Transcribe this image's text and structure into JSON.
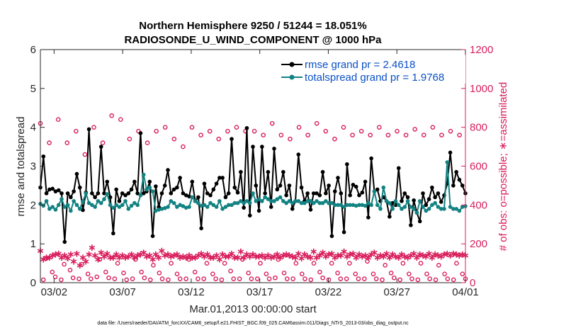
{
  "chart_data": {
    "type": "line",
    "title": "Northern Hemisphere 9250 / 51244 = 18.051%",
    "subtitle": "RADIOSONDE_U_WIND_COMPONENT @ 1000 hPa",
    "xlabel": "Mar.01,2013 00:00:00 start",
    "ylabel": "rmse and totalspread",
    "y2label": "# of obs: o=possible; ∗=assimilated",
    "xlim": [
      0,
      31
    ],
    "ylim": [
      0,
      6
    ],
    "y2lim": [
      0,
      1200
    ],
    "x_ticks": [
      1,
      6,
      11,
      16,
      21,
      26,
      31
    ],
    "x_tick_labels": [
      "03/02",
      "03/07",
      "03/12",
      "03/17",
      "03/22",
      "03/27",
      "04/01"
    ],
    "y_ticks": [
      "0",
      "1",
      "2",
      "3",
      "4",
      "5",
      "6"
    ],
    "y2_ticks": [
      "0",
      "200",
      "400",
      "600",
      "800",
      "1000",
      "1200"
    ],
    "colors": {
      "rmse": "#000000",
      "spread": "#138282",
      "obs": "#d81e5b",
      "legend_text": "#0a50c8",
      "axis": "#262626"
    },
    "series": [
      {
        "name": "rmse grand pr = 2.4618",
        "axis": "left",
        "values": [
          2.45,
          3.25,
          2.3,
          2.4,
          2.42,
          2.35,
          2.38,
          2.3,
          1.05,
          2.3,
          2.2,
          2.35,
          2.8,
          2.45,
          1.87,
          2.32,
          3.95,
          2.3,
          2.2,
          2.3,
          3.5,
          2.3,
          2.6,
          2.2,
          1.27,
          2.4,
          2.1,
          2.3,
          2.25,
          2.3,
          2.4,
          2.6,
          2.3,
          3.85,
          2.3,
          2.35,
          2.6,
          1.2,
          2.48,
          1.95,
          2.3,
          2.5,
          2.9,
          2.3,
          2.4,
          2.45,
          2.7,
          2.3,
          2.25,
          2.22,
          2.6,
          2.1,
          2.2,
          1.4,
          2.55,
          2.3,
          2.25,
          2.4,
          2.55,
          2.7,
          2.7,
          2.2,
          2.3,
          3.7,
          2.45,
          2.32,
          2.85,
          1.93,
          3.98,
          1.73,
          3.5,
          2.5,
          1.85,
          3.5,
          2.3,
          2.85,
          1.95,
          3.45,
          2.4,
          2.5,
          2.85,
          2.25,
          2.5,
          1.9,
          2.1,
          3.3,
          2.45,
          2.1,
          2.3,
          1.88,
          2.3,
          2.3,
          2.25,
          2.85,
          2.3,
          2.5,
          1.2,
          2.35,
          2.7,
          2.3,
          1.3,
          3.05,
          2.25,
          2.52,
          2.47,
          2.25,
          2.32,
          2.6,
          1.68,
          3.2,
          2.35,
          2.4,
          2.1,
          2.2,
          2.1,
          1.7,
          2.05,
          2.0,
          2.95,
          2.1,
          2.3,
          2.2,
          1.48,
          2.12,
          1.8,
          1.58,
          2.3,
          2.0,
          2.15,
          2.45,
          2.2,
          2.3,
          2.08,
          2.25,
          2.55,
          3.35,
          2.5,
          2.85,
          2.65,
          2.5,
          2.3
        ]
      },
      {
        "name": "totalspread grand pr = 1.9768",
        "axis": "left",
        "values": [
          2.03,
          1.98,
          2.1,
          1.9,
          1.95,
          1.88,
          2.0,
          2.15,
          1.95,
          2.0,
          1.85,
          2.1,
          2.0,
          1.9,
          2.1,
          2.3,
          2.05,
          2.0,
          1.95,
          2.1,
          2.05,
          2.15,
          2.28,
          2.0,
          1.93,
          2.0,
          1.95,
          2.0,
          2.1,
          1.9,
          1.98,
          2.05,
          2.0,
          2.25,
          2.78,
          2.4,
          2.45,
          2.35,
          1.85,
          1.88,
          1.9,
          1.92,
          1.95,
          2.1,
          2.05,
          1.95,
          2.0,
          1.97,
          1.93,
          1.95,
          2.2,
          2.1,
          2.05,
          1.98,
          2.0,
          1.95,
          2.05,
          2.0,
          1.95,
          2.1,
          1.9,
          1.95,
          2.0,
          2.0,
          2.05,
          2.05,
          2.1,
          2.05,
          2.1,
          2.05,
          2.3,
          2.1,
          2.15,
          2.1,
          2.2,
          2.15,
          2.1,
          2.1,
          2.15,
          2.2,
          2.1,
          2.05,
          2.1,
          2.05,
          2.1,
          2.1,
          2.05,
          2.05,
          2.1,
          2.1,
          2.05,
          2.1,
          2.05,
          2.05,
          2.1,
          2.05,
          2.05,
          2.0,
          2.0,
          2.0,
          1.95,
          2.0,
          2.0,
          2.0,
          1.98,
          2.0,
          2.0,
          1.98,
          2.05,
          2.0,
          2.35,
          2.0,
          1.9,
          2.45,
          2.1,
          2.05,
          1.9,
          2.1,
          2.0,
          1.9,
          1.95,
          2.1,
          1.95,
          1.9,
          1.8,
          2.1,
          1.95,
          1.85,
          1.9,
          2.0,
          2.05,
          1.95,
          1.9,
          1.9,
          3.1,
          1.95,
          1.9,
          1.9,
          1.85,
          1.95,
          1.97
        ]
      },
      {
        "name": "possible",
        "axis": "right",
        "marker": "o",
        "values": [
          820,
          15,
          125,
          720,
          55,
          30,
          840,
          15,
          95,
          720,
          65,
          25,
          780,
          20,
          95,
          660,
          45,
          20,
          800,
          30,
          120,
          720,
          55,
          25,
          860,
          20,
          100,
          840,
          50,
          15,
          740,
          20,
          120,
          780,
          55,
          25,
          720,
          15,
          90,
          780,
          50,
          20,
          800,
          15,
          100,
          740,
          45,
          20,
          700,
          20,
          120,
          800,
          55,
          20,
          760,
          20,
          100,
          780,
          45,
          20,
          740,
          15,
          100,
          780,
          60,
          20,
          800,
          20,
          120,
          780,
          50,
          20,
          780,
          20,
          100,
          760,
          45,
          20,
          820,
          25,
          120,
          760,
          50,
          20,
          740,
          20,
          100,
          800,
          45,
          20,
          760,
          15,
          100,
          820,
          55,
          25,
          780,
          15,
          100,
          740,
          50,
          20,
          800,
          20,
          100,
          760,
          45,
          20,
          780,
          20,
          110,
          760,
          45,
          20,
          800,
          15,
          90,
          760,
          50,
          25,
          780,
          15,
          100,
          760,
          45,
          20,
          790,
          15,
          100,
          760,
          45,
          20,
          800,
          15,
          90,
          760,
          45,
          20,
          780,
          15,
          100,
          760,
          45,
          20
        ]
      },
      {
        "name": "assimilated",
        "axis": "right",
        "marker": "*",
        "values": [
          165,
          120,
          130,
          130,
          140,
          145,
          150,
          130,
          140,
          125,
          145,
          110,
          150,
          90,
          130,
          110,
          145,
          180,
          140,
          120,
          155,
          135,
          150,
          130,
          130,
          145,
          130,
          140,
          130,
          135,
          145,
          130,
          140,
          145,
          155,
          135,
          140,
          120,
          145,
          130,
          165,
          140,
          145,
          135,
          140,
          145,
          130,
          135,
          130,
          140,
          130,
          130,
          140,
          150,
          135,
          145,
          130,
          130,
          140,
          120,
          145,
          135,
          135,
          150,
          130,
          130,
          160,
          130,
          145,
          135,
          145,
          135,
          135,
          140,
          130,
          140,
          130,
          135,
          145,
          130,
          140,
          145,
          140,
          135,
          130,
          150,
          125,
          145,
          135,
          130,
          160,
          130,
          140,
          155,
          135,
          145,
          150,
          130,
          140,
          140,
          160,
          135,
          145,
          150,
          130,
          145,
          135,
          140,
          130,
          145,
          155,
          130,
          140,
          135,
          150,
          130,
          145,
          135,
          130,
          145,
          135,
          130,
          140,
          150,
          130,
          145,
          140,
          135,
          150,
          130,
          145,
          140,
          135,
          145,
          150,
          140,
          150,
          145,
          140,
          145,
          140
        ]
      }
    ],
    "legend": [
      "rmse grand pr = 2.4618",
      "totalspread grand pr = 1.9768"
    ],
    "legend_position": "top-right"
  },
  "footer": {
    "data_file": "data file: /Users/raeder/DAI/ATM_forcXX/CAM6_setup/f.e21.FHIST_BGC.f09_025.CAM6assim.011/Diags_NTrS_2013-03/obs_diag_output.nc"
  }
}
